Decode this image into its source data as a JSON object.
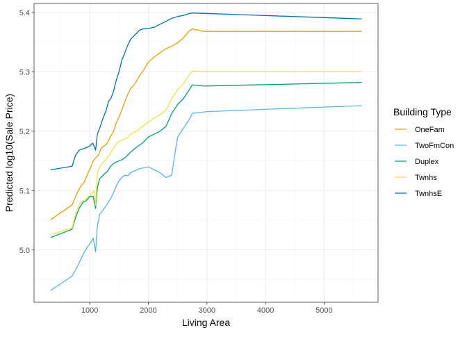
{
  "chart_data": {
    "type": "line",
    "title": "",
    "xlabel": "Living Area",
    "ylabel": "Predicted log10(Sale Price)",
    "xlim": [
      50,
      5920
    ],
    "ylim": [
      4.912,
      5.415
    ],
    "x_ticks": [
      1000,
      2000,
      3000,
      4000,
      5000
    ],
    "y_ticks": [
      5.0,
      5.1,
      5.2,
      5.3,
      5.4
    ],
    "x_tick_labels": [
      "1000",
      "2000",
      "3000",
      "4000",
      "5000"
    ],
    "y_tick_labels": [
      "5.0",
      "5.1",
      "5.2",
      "5.3",
      "5.4"
    ],
    "grid": true,
    "legend": {
      "title": "Building Type",
      "position": "right"
    },
    "series": [
      {
        "name": "OneFam",
        "color": "#E69F00",
        "points": [
          [
            334,
            5.051
          ],
          [
            700,
            5.076
          ],
          [
            790,
            5.097
          ],
          [
            850,
            5.108
          ],
          [
            900,
            5.113
          ],
          [
            960,
            5.127
          ],
          [
            1020,
            5.14
          ],
          [
            1060,
            5.15
          ],
          [
            1100,
            5.155
          ],
          [
            1150,
            5.16
          ],
          [
            1200,
            5.172
          ],
          [
            1250,
            5.175
          ],
          [
            1300,
            5.18
          ],
          [
            1350,
            5.19
          ],
          [
            1400,
            5.198
          ],
          [
            1450,
            5.213
          ],
          [
            1500,
            5.224
          ],
          [
            1550,
            5.236
          ],
          [
            1600,
            5.25
          ],
          [
            1650,
            5.262
          ],
          [
            1700,
            5.272
          ],
          [
            1750,
            5.277
          ],
          [
            1800,
            5.285
          ],
          [
            1850,
            5.293
          ],
          [
            1900,
            5.3
          ],
          [
            1950,
            5.308
          ],
          [
            2000,
            5.316
          ],
          [
            2100,
            5.325
          ],
          [
            2200,
            5.332
          ],
          [
            2300,
            5.339
          ],
          [
            2400,
            5.343
          ],
          [
            2500,
            5.349
          ],
          [
            2600,
            5.357
          ],
          [
            2700,
            5.369
          ],
          [
            2750,
            5.372
          ],
          [
            2950,
            5.368
          ],
          [
            5642,
            5.368
          ]
        ]
      },
      {
        "name": "TwoFmCon",
        "color": "#56B4E9",
        "points": [
          [
            334,
            4.932
          ],
          [
            700,
            4.956
          ],
          [
            780,
            4.97
          ],
          [
            850,
            4.985
          ],
          [
            900,
            4.995
          ],
          [
            960,
            5.005
          ],
          [
            1020,
            5.013
          ],
          [
            1060,
            5.02
          ],
          [
            1100,
            4.997
          ],
          [
            1130,
            5.04
          ],
          [
            1170,
            5.06
          ],
          [
            1250,
            5.07
          ],
          [
            1300,
            5.078
          ],
          [
            1350,
            5.085
          ],
          [
            1400,
            5.095
          ],
          [
            1450,
            5.107
          ],
          [
            1500,
            5.117
          ],
          [
            1550,
            5.122
          ],
          [
            1600,
            5.126
          ],
          [
            1650,
            5.125
          ],
          [
            1700,
            5.13
          ],
          [
            1800,
            5.135
          ],
          [
            1900,
            5.138
          ],
          [
            2000,
            5.14
          ],
          [
            2100,
            5.135
          ],
          [
            2200,
            5.13
          ],
          [
            2300,
            5.122
          ],
          [
            2400,
            5.126
          ],
          [
            2450,
            5.16
          ],
          [
            2500,
            5.19
          ],
          [
            2600,
            5.205
          ],
          [
            2700,
            5.22
          ],
          [
            2750,
            5.23
          ],
          [
            3000,
            5.233
          ],
          [
            5642,
            5.243
          ]
        ]
      },
      {
        "name": "Duplex",
        "color": "#009E73",
        "points": [
          [
            334,
            5.021
          ],
          [
            700,
            5.035
          ],
          [
            760,
            5.055
          ],
          [
            820,
            5.07
          ],
          [
            880,
            5.08
          ],
          [
            940,
            5.083
          ],
          [
            1000,
            5.09
          ],
          [
            1060,
            5.09
          ],
          [
            1100,
            5.07
          ],
          [
            1130,
            5.105
          ],
          [
            1170,
            5.12
          ],
          [
            1250,
            5.128
          ],
          [
            1300,
            5.132
          ],
          [
            1350,
            5.14
          ],
          [
            1400,
            5.145
          ],
          [
            1450,
            5.148
          ],
          [
            1500,
            5.15
          ],
          [
            1550,
            5.152
          ],
          [
            1600,
            5.155
          ],
          [
            1650,
            5.16
          ],
          [
            1700,
            5.165
          ],
          [
            1800,
            5.173
          ],
          [
            1900,
            5.18
          ],
          [
            2000,
            5.19
          ],
          [
            2100,
            5.195
          ],
          [
            2200,
            5.2
          ],
          [
            2300,
            5.208
          ],
          [
            2400,
            5.23
          ],
          [
            2500,
            5.245
          ],
          [
            2600,
            5.255
          ],
          [
            2700,
            5.27
          ],
          [
            2750,
            5.278
          ],
          [
            2950,
            5.276
          ],
          [
            5642,
            5.282
          ]
        ]
      },
      {
        "name": "Twnhs",
        "color": "#F0E442",
        "points": [
          [
            334,
            5.026
          ],
          [
            700,
            5.037
          ],
          [
            770,
            5.065
          ],
          [
            840,
            5.08
          ],
          [
            900,
            5.083
          ],
          [
            960,
            5.088
          ],
          [
            1030,
            5.095
          ],
          [
            1070,
            5.1
          ],
          [
            1100,
            5.075
          ],
          [
            1130,
            5.13
          ],
          [
            1170,
            5.14
          ],
          [
            1250,
            5.15
          ],
          [
            1300,
            5.155
          ],
          [
            1350,
            5.162
          ],
          [
            1400,
            5.17
          ],
          [
            1450,
            5.178
          ],
          [
            1500,
            5.183
          ],
          [
            1550,
            5.185
          ],
          [
            1600,
            5.187
          ],
          [
            1650,
            5.19
          ],
          [
            1700,
            5.195
          ],
          [
            1800,
            5.2
          ],
          [
            1900,
            5.208
          ],
          [
            2000,
            5.215
          ],
          [
            2100,
            5.222
          ],
          [
            2200,
            5.228
          ],
          [
            2300,
            5.235
          ],
          [
            2400,
            5.255
          ],
          [
            2500,
            5.27
          ],
          [
            2600,
            5.28
          ],
          [
            2700,
            5.295
          ],
          [
            2750,
            5.301
          ],
          [
            2950,
            5.3
          ],
          [
            5642,
            5.3
          ]
        ]
      },
      {
        "name": "TwnhsE",
        "color": "#0072B2",
        "points": [
          [
            334,
            5.135
          ],
          [
            700,
            5.141
          ],
          [
            760,
            5.16
          ],
          [
            820,
            5.168
          ],
          [
            880,
            5.17
          ],
          [
            940,
            5.172
          ],
          [
            1000,
            5.175
          ],
          [
            1050,
            5.18
          ],
          [
            1100,
            5.168
          ],
          [
            1130,
            5.195
          ],
          [
            1170,
            5.205
          ],
          [
            1220,
            5.22
          ],
          [
            1280,
            5.235
          ],
          [
            1320,
            5.25
          ],
          [
            1360,
            5.255
          ],
          [
            1400,
            5.265
          ],
          [
            1450,
            5.285
          ],
          [
            1500,
            5.3
          ],
          [
            1550,
            5.32
          ],
          [
            1600,
            5.332
          ],
          [
            1650,
            5.345
          ],
          [
            1700,
            5.355
          ],
          [
            1750,
            5.36
          ],
          [
            1800,
            5.365
          ],
          [
            1850,
            5.37
          ],
          [
            1900,
            5.372
          ],
          [
            2000,
            5.373
          ],
          [
            2100,
            5.375
          ],
          [
            2200,
            5.38
          ],
          [
            2300,
            5.385
          ],
          [
            2400,
            5.39
          ],
          [
            2500,
            5.393
          ],
          [
            2600,
            5.395
          ],
          [
            2700,
            5.398
          ],
          [
            2750,
            5.399
          ],
          [
            5642,
            5.389
          ]
        ]
      }
    ]
  }
}
